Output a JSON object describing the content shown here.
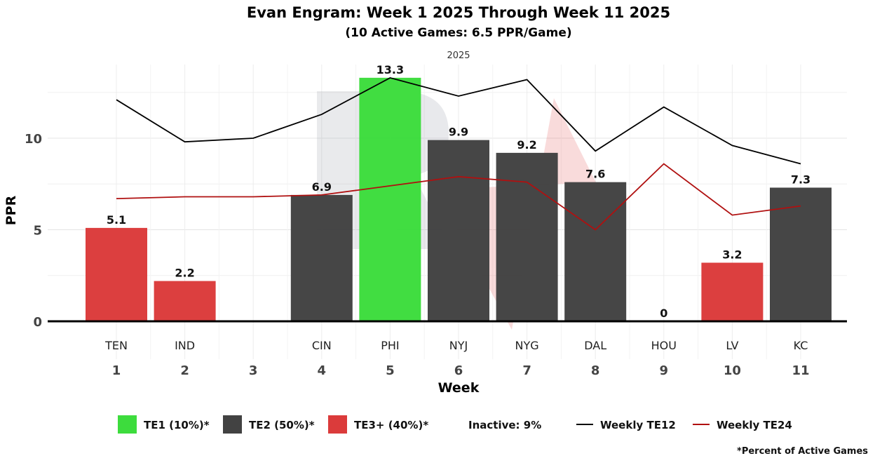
{
  "chart_data": {
    "type": "bar",
    "title": "Evan Engram: Week 1 2025 Through Week 11 2025",
    "subtitle": "(10 Active Games: 6.5 PPR/Game)",
    "facet_label": "2025",
    "xlabel": "Week",
    "ylabel": "PPR",
    "ylim": [
      0,
      14
    ],
    "yticks": [
      0,
      5,
      10
    ],
    "weeks": [
      "1",
      "2",
      "3",
      "4",
      "5",
      "6",
      "7",
      "8",
      "9",
      "10",
      "11"
    ],
    "opponents": [
      "TEN",
      "IND",
      "",
      "CIN",
      "PHI",
      "NYJ",
      "NYG",
      "DAL",
      "HOU",
      "LV",
      "KC"
    ],
    "values": [
      5.1,
      2.2,
      null,
      6.9,
      13.3,
      9.9,
      9.2,
      7.6,
      0,
      3.2,
      7.3
    ],
    "value_labels": [
      "5.1",
      "2.2",
      "",
      "6.9",
      "13.3",
      "9.9",
      "9.2",
      "7.6",
      "0",
      "3.2",
      "7.3"
    ],
    "tiers": [
      "TE3+",
      "TE3+",
      "",
      "TE2",
      "TE1",
      "TE2",
      "TE2",
      "TE2",
      "",
      "TE3+",
      "TE2"
    ],
    "tier_colors": {
      "TE1": "#3ddc3d",
      "TE2": "#424242",
      "TE3+": "#db3b3b"
    },
    "lines": [
      {
        "name": "Weekly TE12",
        "color": "#000000",
        "values": [
          12.1,
          9.8,
          10.0,
          11.3,
          13.3,
          12.3,
          13.2,
          9.3,
          11.7,
          9.6,
          8.6
        ]
      },
      {
        "name": "Weekly TE24",
        "color": "#b01010",
        "values": [
          6.7,
          6.8,
          6.8,
          6.9,
          7.4,
          7.9,
          7.6,
          5.0,
          8.6,
          5.8,
          6.3
        ]
      }
    ],
    "legend": {
      "te1": "TE1 (10%)*",
      "te2": "TE2 (50%)*",
      "te3": "TE3+ (40%)*",
      "inactive": "Inactive: 9%",
      "te12": "Weekly TE12",
      "te24": "Weekly TE24"
    },
    "footnote": "*Percent of Active Games"
  }
}
